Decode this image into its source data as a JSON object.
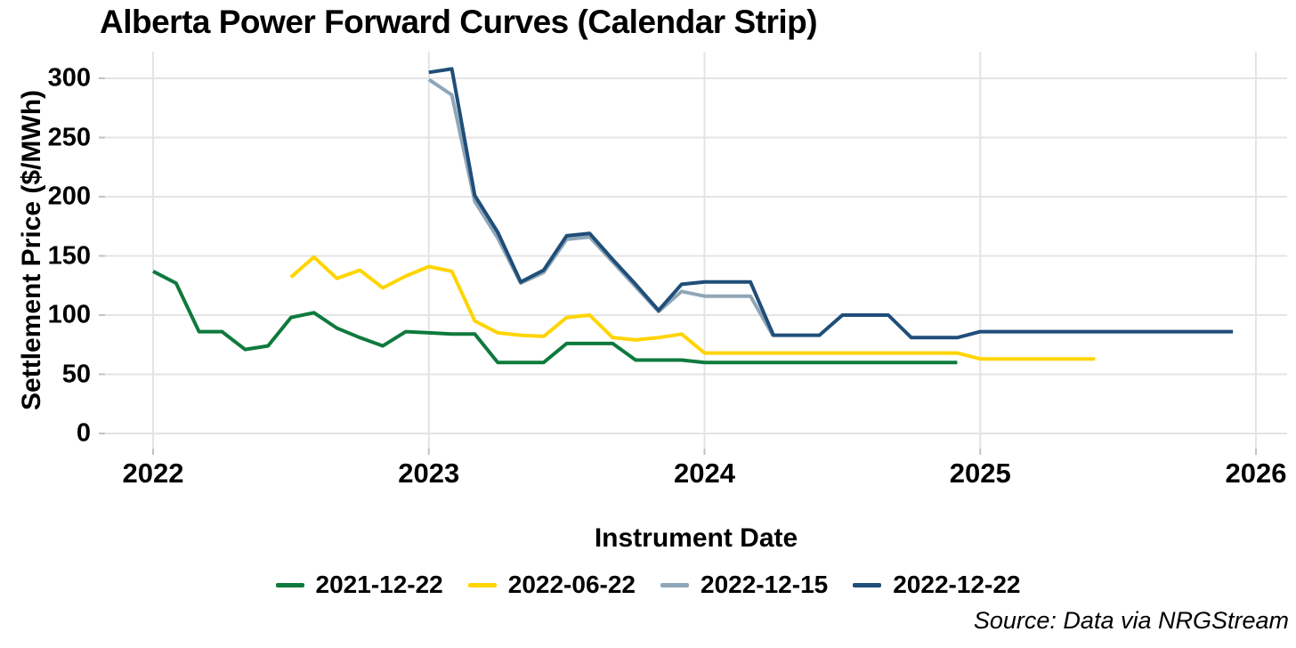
{
  "title": "Alberta Power Forward Curves (Calendar Strip)",
  "source_note": "Source: Data via NRGStream",
  "chart_data": {
    "type": "line",
    "title": "Alberta Power Forward Curves (Calendar Strip)",
    "xlabel": "Instrument Date",
    "ylabel": "Settlement Price ($/MWh)",
    "x_ticks": [
      2022,
      2023,
      2024,
      2025,
      2026
    ],
    "y_ticks": [
      0,
      50,
      100,
      150,
      200,
      250,
      300
    ],
    "ylim": [
      0,
      315
    ],
    "x_unit": "monthly instruments",
    "grid": true,
    "legend_position": "bottom",
    "colors": {
      "grid": "#E4E4E4",
      "axis_tick": "#C2C2C2",
      "text": "#000000"
    },
    "series": [
      {
        "name": "2021-12-22",
        "color": "#0E7A3D",
        "start": "2022-01",
        "values": [
          137,
          127,
          86,
          86,
          71,
          74,
          98,
          102,
          89,
          81,
          74,
          86,
          85,
          84,
          84,
          60,
          60,
          60,
          76,
          76,
          76,
          62,
          62,
          62,
          60,
          60,
          60,
          60,
          60,
          60,
          60,
          60,
          60,
          60,
          60,
          60
        ]
      },
      {
        "name": "2022-06-22",
        "color": "#FFD400",
        "start": "2022-07",
        "values": [
          132,
          149,
          131,
          138,
          123,
          133,
          141,
          137,
          95,
          85,
          83,
          82,
          98,
          100,
          81,
          79,
          81,
          84,
          68,
          68,
          68,
          68,
          68,
          68,
          68,
          68,
          68,
          68,
          68,
          68,
          63,
          63,
          63,
          63,
          63,
          63
        ]
      },
      {
        "name": "2022-12-15",
        "color": "#8FA6B8",
        "start": "2023-01",
        "values": [
          299,
          286,
          196,
          165,
          127,
          136,
          164,
          166,
          145,
          124,
          103,
          120,
          116,
          116,
          116,
          82
        ]
      },
      {
        "name": "2022-12-22",
        "color": "#1F4E79",
        "start": "2023-01",
        "values": [
          305,
          308,
          201,
          170,
          128,
          138,
          167,
          169,
          147,
          126,
          104,
          126,
          128,
          128,
          128,
          83,
          83,
          83,
          100,
          100,
          100,
          81,
          81,
          81,
          86,
          86,
          86,
          86,
          86,
          86,
          86,
          86,
          86,
          86,
          86,
          86
        ]
      }
    ]
  }
}
